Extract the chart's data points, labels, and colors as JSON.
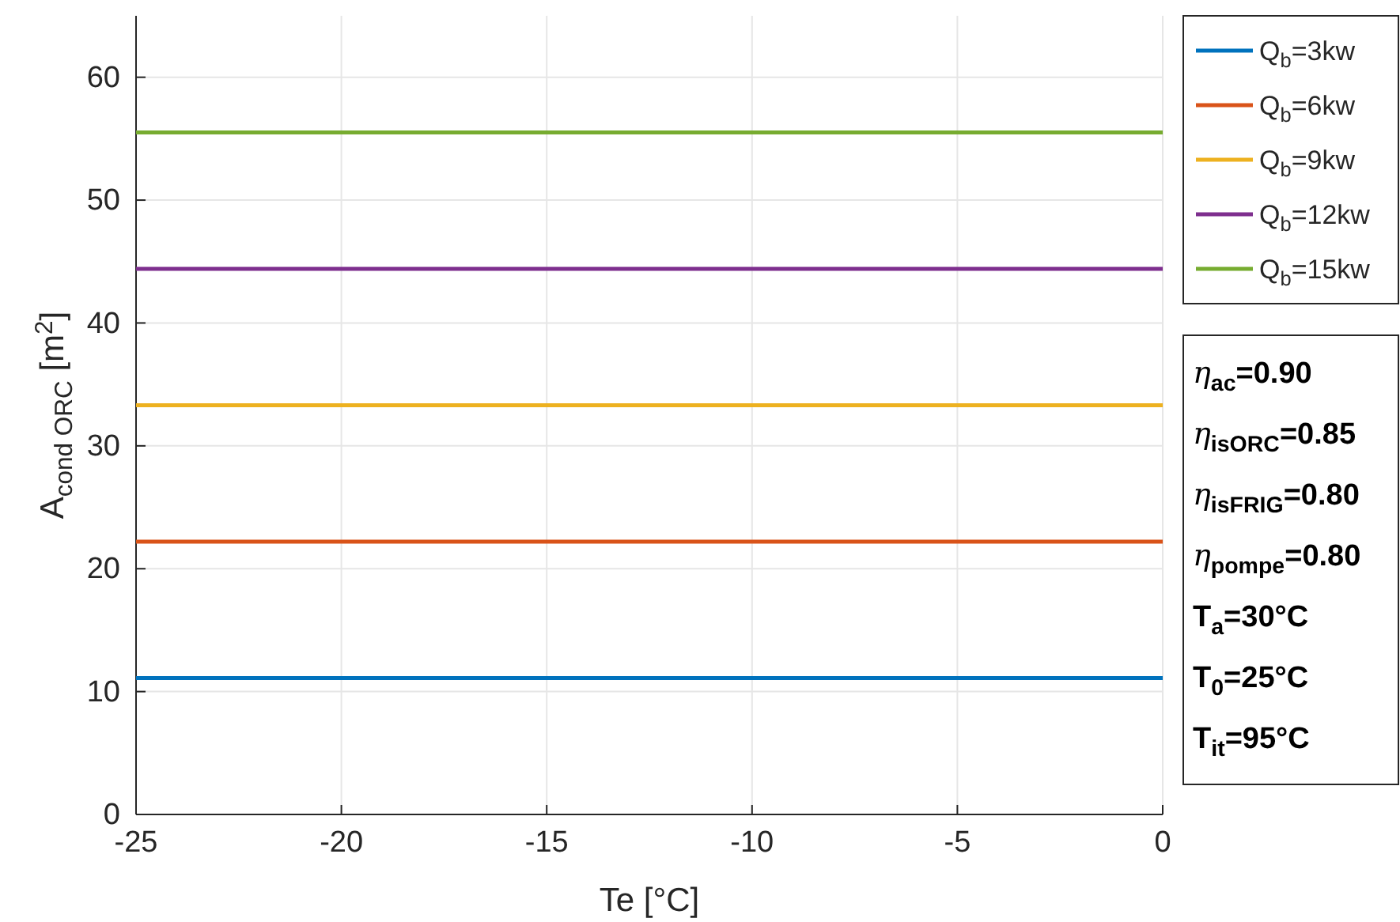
{
  "chart_data": {
    "type": "line",
    "xlabel": "Te [°C]",
    "ylabel": "A$_{cond ORC}$ [m$^{2}$]",
    "x": [
      -25,
      0
    ],
    "xlim": [
      -25,
      0
    ],
    "xticks": [
      -25,
      -20,
      -15,
      -10,
      -5,
      0
    ],
    "ylim": [
      0,
      65
    ],
    "yticks": [
      0,
      10,
      20,
      30,
      40,
      50,
      60
    ],
    "grid": true,
    "legend": "top right",
    "line_style": "solid",
    "marker": "none",
    "series": [
      {
        "name": "Q$_{b}$=3kw",
        "color": "#0072bd",
        "values": [
          11.1,
          11.1
        ]
      },
      {
        "name": "Q$_{b}$=6kw",
        "color": "#d95319",
        "values": [
          22.2,
          22.2
        ]
      },
      {
        "name": "Q$_{b}$=9kw",
        "color": "#edb120",
        "values": [
          33.3,
          33.3
        ]
      },
      {
        "name": "Q$_{b}$=12kw",
        "color": "#7e2f8e",
        "values": [
          44.4,
          44.4
        ]
      },
      {
        "name": "Q$_{b}$=15kw",
        "color": "#77ac30",
        "values": [
          55.5,
          55.5
        ]
      }
    ],
    "annotations": [
      "η$_{ac}$=0.90",
      "η$_{isORC}$=0.85",
      "η$_{isFRIG}$=0.80",
      "η$_{pompe}$=0.80",
      "T$_{a}$=30°C",
      "T$_{0}$=25°C",
      "T$_{it}$=95°C"
    ]
  }
}
